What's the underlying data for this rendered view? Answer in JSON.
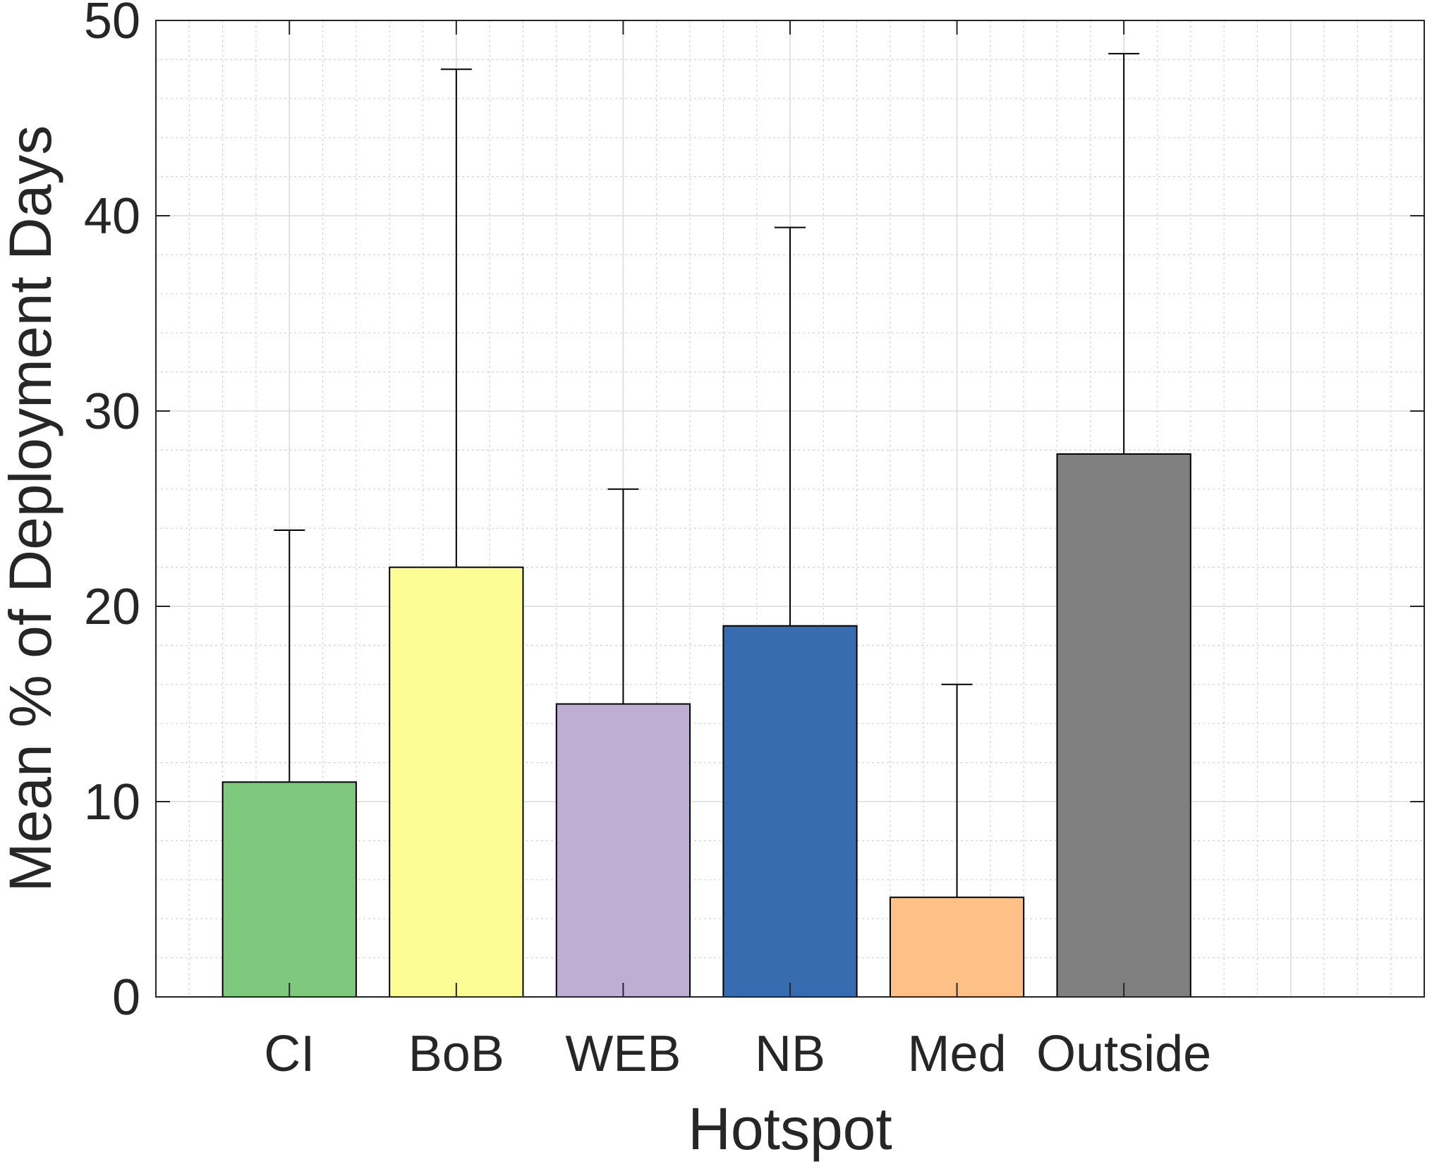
{
  "chart_data": {
    "type": "bar",
    "xlabel": "Hotspot",
    "ylabel": "Mean % of Deployment Days",
    "categories": [
      "CI",
      "BoB",
      "WEB",
      "NB",
      "Med",
      "Outside"
    ],
    "values": [
      11,
      22,
      15,
      19,
      5.1,
      27.8
    ],
    "error_upper": [
      23.9,
      47.5,
      26,
      39.4,
      16,
      48.3
    ],
    "colors": [
      "#7fc97f",
      "#fdfd96",
      "#beaed4",
      "#386cb0",
      "#fdc086",
      "#808080"
    ],
    "ylim": [
      0,
      50
    ],
    "yticks": [
      0,
      10,
      20,
      30,
      40,
      50
    ],
    "grid": "major and minor"
  }
}
